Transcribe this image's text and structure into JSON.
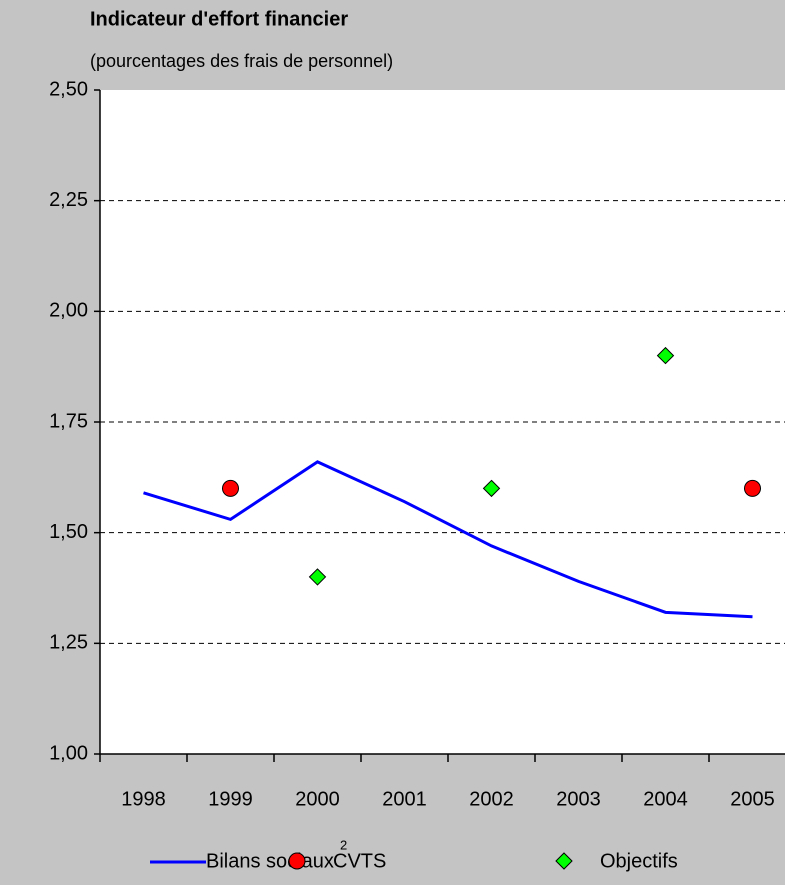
{
  "chart_data": {
    "type": "line",
    "title": "Indicateur d'effort financier",
    "subtitle": "(pourcentages des frais de personnel)",
    "categories": [
      "1998",
      "1999",
      "2000",
      "2001",
      "2002",
      "2003",
      "2004",
      "2005"
    ],
    "series": [
      {
        "name": "Bilans sociaux",
        "legend_footnote": "2",
        "color": "#0000ff",
        "style": "line",
        "values": [
          1.59,
          1.53,
          1.66,
          1.57,
          1.47,
          1.39,
          1.32,
          1.31
        ]
      },
      {
        "name": "CVTS",
        "color": "#ff0000",
        "style": "circle",
        "values": [
          null,
          1.6,
          null,
          null,
          null,
          null,
          null,
          1.6
        ]
      },
      {
        "name": "Objectifs",
        "color": "#00ff00",
        "style": "diamond",
        "values": [
          null,
          null,
          1.4,
          null,
          1.6,
          null,
          1.9,
          null
        ]
      }
    ],
    "ylim": [
      1.0,
      2.5
    ],
    "yticks": [
      {
        "value": 1.0,
        "label": "1,00"
      },
      {
        "value": 1.25,
        "label": "1,25"
      },
      {
        "value": 1.5,
        "label": "1,50"
      },
      {
        "value": 1.75,
        "label": "1,75"
      },
      {
        "value": 2.0,
        "label": "2,00"
      },
      {
        "value": 2.25,
        "label": "2,25"
      },
      {
        "value": 2.5,
        "label": "2,50"
      }
    ],
    "grid": true
  }
}
